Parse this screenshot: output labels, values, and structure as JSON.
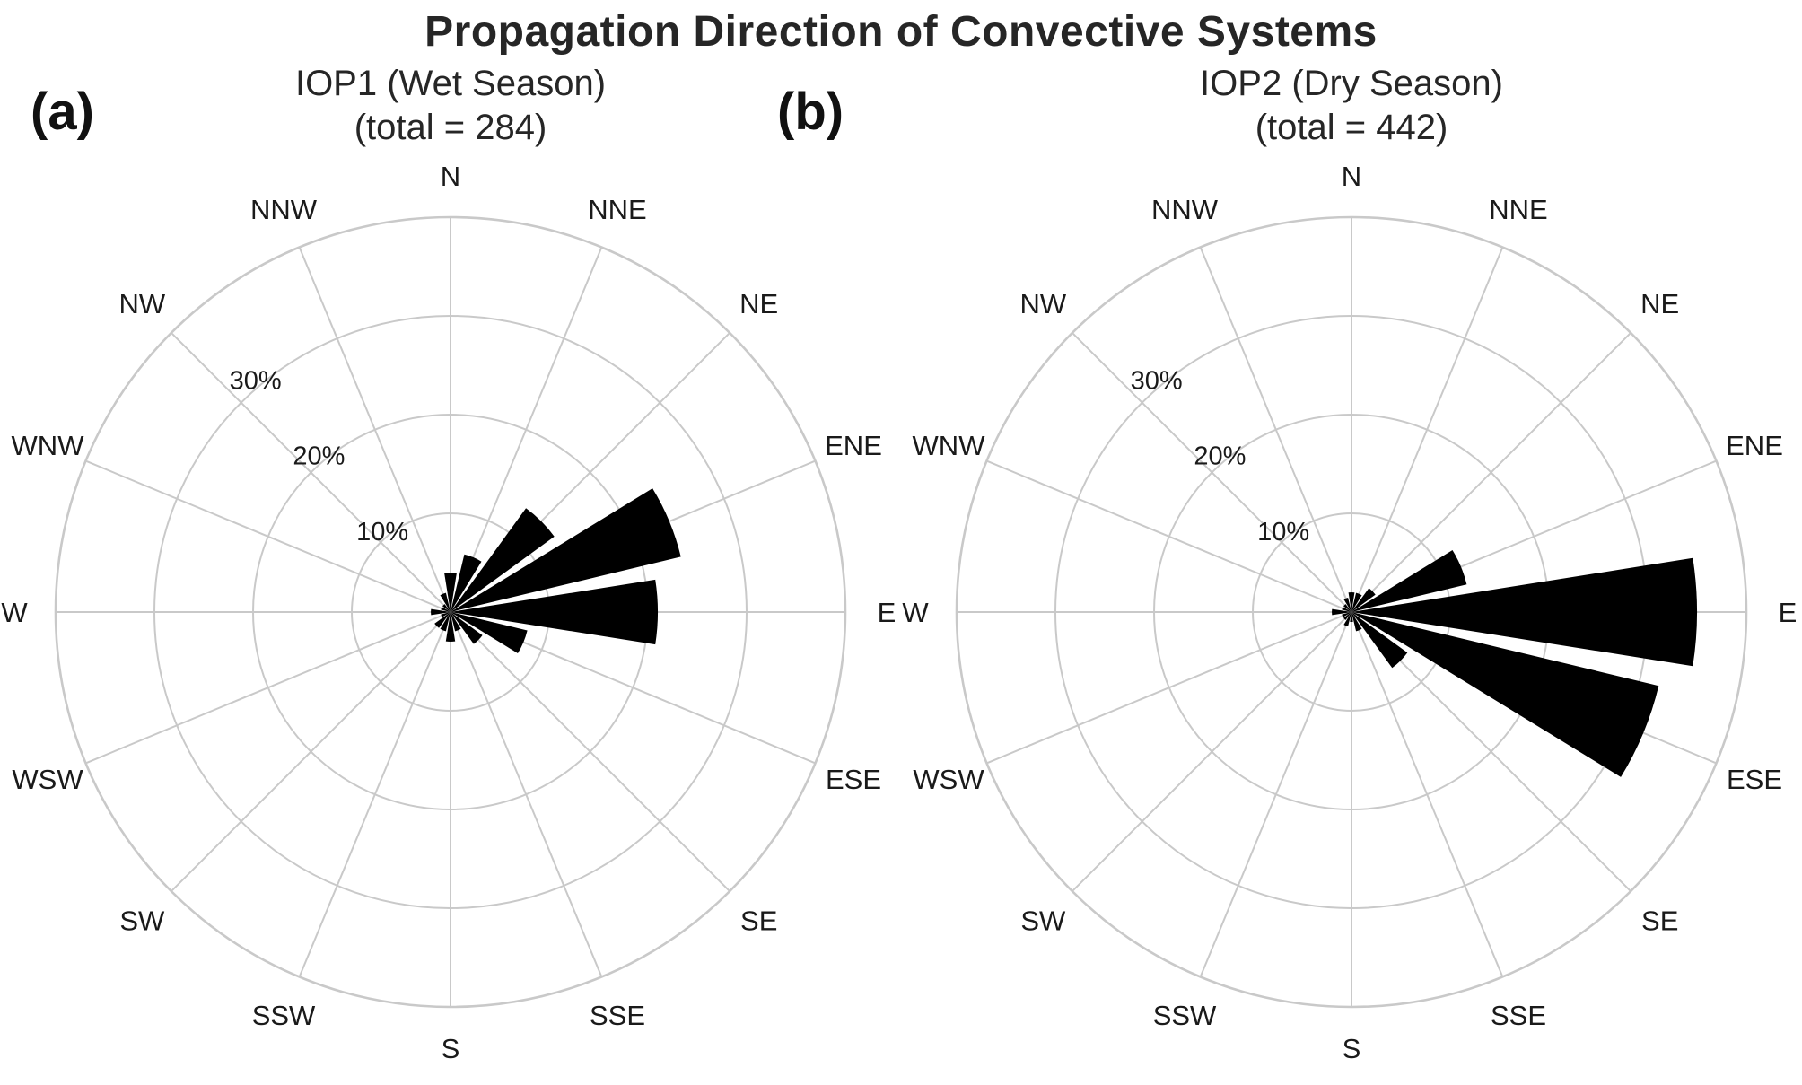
{
  "title": "Propagation Direction of Convective Systems",
  "colors": {
    "petal": "#000000",
    "grid": "#c9c9c9",
    "text": "#1a1a1a",
    "background": "#ffffff"
  },
  "chart_data": [
    {
      "type": "windrose",
      "panel_label": "(a)",
      "title": "IOP1 (Wet Season)",
      "subtitle": "(total = 284)",
      "total": 284,
      "directions": [
        "N",
        "NNE",
        "NE",
        "ENE",
        "E",
        "ESE",
        "SE",
        "SSE",
        "S",
        "SSW",
        "SW",
        "WSW",
        "W",
        "WNW",
        "NW",
        "NNW"
      ],
      "values_percent": [
        4,
        6,
        13,
        24,
        21,
        8,
        4,
        2,
        3,
        2,
        2,
        1,
        2,
        1,
        1,
        2
      ],
      "r_ticks": [
        10,
        20,
        30
      ],
      "r_tick_labels": [
        "10%",
        "20%",
        "30%"
      ],
      "r_max": 40,
      "legend": "none",
      "grid": true
    },
    {
      "type": "windrose",
      "panel_label": "(b)",
      "title": "IOP2 (Dry Season)",
      "subtitle": "(total = 442)",
      "total": 442,
      "directions": [
        "N",
        "NNE",
        "NE",
        "ENE",
        "E",
        "ESE",
        "SE",
        "SSE",
        "S",
        "SSW",
        "SW",
        "WSW",
        "W",
        "WNW",
        "NW",
        "NNW"
      ],
      "values_percent": [
        2,
        2,
        3,
        12,
        35,
        32,
        7,
        2,
        1,
        1.5,
        1,
        1,
        2,
        1,
        1,
        1.5
      ],
      "r_ticks": [
        10,
        20,
        30
      ],
      "r_tick_labels": [
        "10%",
        "20%",
        "30%"
      ],
      "r_max": 40,
      "legend": "none",
      "grid": true
    }
  ]
}
